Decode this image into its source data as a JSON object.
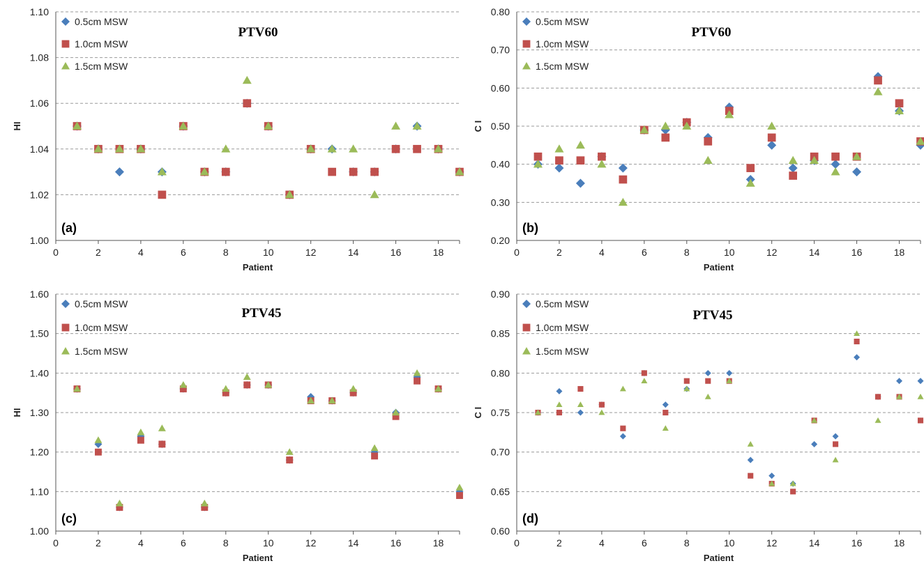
{
  "colors": {
    "s05": "#4a7ebb",
    "s10": "#c0504d",
    "s15": "#9bbb59",
    "grid": "#9a9a9a",
    "axis": "#555555"
  },
  "chart_data": [
    {
      "type": "scatter",
      "panel_label": "(a)",
      "title": "PTV60",
      "xlabel": "Patient",
      "ylabel": "HI",
      "xlim": [
        0,
        19
      ],
      "ylim": [
        1.0,
        1.1
      ],
      "xticks": [
        "0",
        "2",
        "4",
        "6",
        "8",
        "10",
        "12",
        "14",
        "16",
        "18"
      ],
      "yticks": [
        "1.00",
        "1.02",
        "1.04",
        "1.06",
        "1.08",
        "1.10"
      ],
      "grid": true,
      "legend_position": "top-left",
      "x": [
        1,
        2,
        3,
        4,
        5,
        6,
        7,
        8,
        9,
        10,
        11,
        12,
        13,
        14,
        15,
        16,
        17,
        18,
        19
      ],
      "series": [
        {
          "name": "0.5cm MSW",
          "values": [
            1.05,
            1.04,
            1.03,
            1.04,
            1.03,
            1.05,
            1.03,
            1.03,
            1.06,
            1.05,
            1.02,
            1.04,
            1.04,
            1.03,
            1.03,
            1.04,
            1.05,
            1.04,
            1.03
          ]
        },
        {
          "name": "1.0cm MSW",
          "values": [
            1.05,
            1.04,
            1.04,
            1.04,
            1.02,
            1.05,
            1.03,
            1.03,
            1.06,
            1.05,
            1.02,
            1.04,
            1.03,
            1.03,
            1.03,
            1.04,
            1.04,
            1.04,
            1.03
          ]
        },
        {
          "name": "1.5cm MSW",
          "values": [
            1.05,
            1.04,
            1.04,
            1.04,
            1.03,
            1.05,
            1.03,
            1.04,
            1.07,
            1.05,
            1.02,
            1.04,
            1.04,
            1.04,
            1.02,
            1.05,
            1.05,
            1.04,
            1.03
          ]
        }
      ]
    },
    {
      "type": "scatter",
      "panel_label": "(b)",
      "title": "PTV60",
      "xlabel": "Patient",
      "ylabel": "C I",
      "xlim": [
        0,
        19
      ],
      "ylim": [
        0.2,
        0.8
      ],
      "xticks": [
        "0",
        "2",
        "4",
        "6",
        "8",
        "10",
        "12",
        "14",
        "16",
        "18"
      ],
      "yticks": [
        "0.20",
        "0.30",
        "0.40",
        "0.50",
        "0.60",
        "0.70",
        "0.80"
      ],
      "grid": true,
      "legend_position": "top-left",
      "x": [
        1,
        2,
        3,
        4,
        5,
        6,
        7,
        8,
        9,
        10,
        11,
        12,
        13,
        14,
        15,
        16,
        17,
        18,
        19
      ],
      "series": [
        {
          "name": "0.5cm MSW",
          "values": [
            0.4,
            0.39,
            0.35,
            0.42,
            0.39,
            0.49,
            0.49,
            0.51,
            0.47,
            0.55,
            0.36,
            0.45,
            0.39,
            0.41,
            0.4,
            0.38,
            0.63,
            0.54,
            0.45
          ]
        },
        {
          "name": "1.0cm MSW",
          "values": [
            0.42,
            0.41,
            0.41,
            0.42,
            0.36,
            0.49,
            0.47,
            0.51,
            0.46,
            0.54,
            0.39,
            0.47,
            0.37,
            0.42,
            0.42,
            0.42,
            0.62,
            0.56,
            0.46
          ]
        },
        {
          "name": "1.5cm MSW",
          "values": [
            0.4,
            0.44,
            0.45,
            0.4,
            0.3,
            0.49,
            0.5,
            0.5,
            0.41,
            0.53,
            0.35,
            0.5,
            0.41,
            0.41,
            0.38,
            0.42,
            0.59,
            0.54,
            0.46
          ]
        }
      ]
    },
    {
      "type": "scatter",
      "panel_label": "(c)",
      "title": "PTV45",
      "xlabel": "Patient",
      "ylabel": "HI",
      "xlim": [
        0,
        19
      ],
      "ylim": [
        1.0,
        1.6
      ],
      "xticks": [
        "0",
        "2",
        "4",
        "6",
        "8",
        "10",
        "12",
        "14",
        "16",
        "18"
      ],
      "yticks": [
        "1.00",
        "1.10",
        "1.20",
        "1.30",
        "1.40",
        "1.50",
        "1.60"
      ],
      "grid": true,
      "legend_position": "top-left",
      "x": [
        1,
        2,
        3,
        4,
        5,
        6,
        7,
        8,
        9,
        10,
        11,
        12,
        13,
        14,
        15,
        16,
        17,
        18,
        19
      ],
      "series": [
        {
          "name": "0.5cm MSW",
          "values": [
            1.36,
            1.22,
            1.06,
            1.24,
            1.22,
            1.36,
            1.06,
            1.35,
            1.37,
            1.37,
            1.18,
            1.34,
            1.33,
            1.35,
            1.2,
            1.3,
            1.39,
            1.36,
            1.1
          ]
        },
        {
          "name": "1.0cm MSW",
          "values": [
            1.36,
            1.2,
            1.06,
            1.23,
            1.22,
            1.36,
            1.06,
            1.35,
            1.37,
            1.37,
            1.18,
            1.33,
            1.33,
            1.35,
            1.19,
            1.29,
            1.38,
            1.36,
            1.09
          ]
        },
        {
          "name": "1.5cm MSW",
          "values": [
            1.36,
            1.23,
            1.07,
            1.25,
            1.26,
            1.37,
            1.07,
            1.36,
            1.39,
            1.37,
            1.2,
            1.33,
            1.33,
            1.36,
            1.21,
            1.3,
            1.4,
            1.36,
            1.11
          ]
        }
      ]
    },
    {
      "type": "scatter",
      "panel_label": "(d)",
      "title": "PTV45",
      "xlabel": "Patient",
      "ylabel": "C I",
      "xlim": [
        0,
        19
      ],
      "ylim": [
        0.6,
        0.9
      ],
      "xticks": [
        "0",
        "2",
        "4",
        "6",
        "8",
        "10",
        "12",
        "14",
        "16",
        "18"
      ],
      "yticks": [
        "0.60",
        "0.65",
        "0.70",
        "0.75",
        "0.80",
        "0.85",
        "0.90"
      ],
      "grid": true,
      "legend_position": "top-left",
      "x": [
        1,
        2,
        3,
        4,
        5,
        6,
        7,
        8,
        9,
        10,
        11,
        12,
        13,
        14,
        15,
        16,
        17,
        18,
        19
      ],
      "series": [
        {
          "name": "0.5cm MSW",
          "values": [
            0.75,
            0.777,
            0.75,
            0.76,
            0.72,
            0.8,
            0.76,
            0.78,
            0.8,
            0.8,
            0.69,
            0.67,
            0.66,
            0.71,
            0.72,
            0.82,
            0.77,
            0.79,
            0.79
          ]
        },
        {
          "name": "1.0cm MSW",
          "values": [
            0.75,
            0.75,
            0.78,
            0.76,
            0.73,
            0.8,
            0.75,
            0.79,
            0.79,
            0.79,
            0.67,
            0.66,
            0.65,
            0.74,
            0.71,
            0.84,
            0.77,
            0.77,
            0.74
          ]
        },
        {
          "name": "1.5cm MSW",
          "values": [
            0.75,
            0.76,
            0.76,
            0.75,
            0.78,
            0.79,
            0.73,
            0.78,
            0.77,
            0.79,
            0.71,
            0.66,
            0.66,
            0.74,
            0.69,
            0.85,
            0.74,
            0.77,
            0.77
          ]
        }
      ]
    }
  ]
}
